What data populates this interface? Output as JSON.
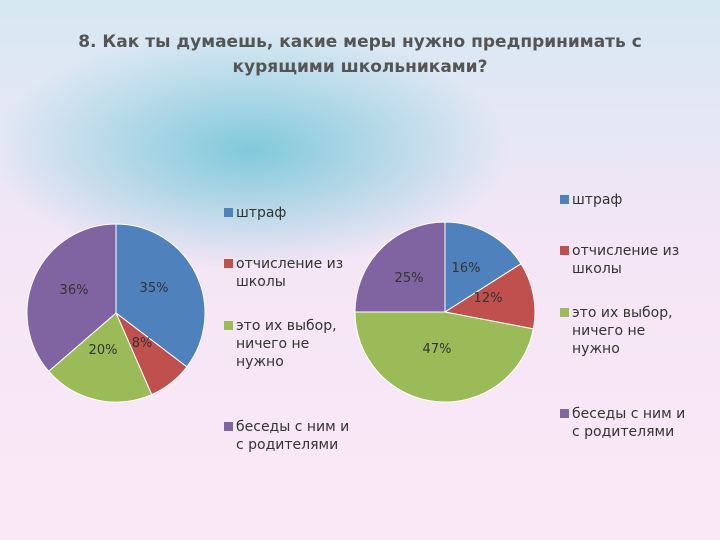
{
  "title": "8. Как ты думаешь, какие меры нужно предпринимать с курящими школьниками?",
  "chart_data": [
    {
      "type": "pie",
      "categories": [
        "штраф",
        "отчисление из школы",
        "это их выбор, ничего не нужно",
        "беседы с ним и с родителями"
      ],
      "values": [
        35,
        8,
        20,
        36
      ],
      "data_labels": [
        "35%",
        "8%",
        "20%",
        "36%"
      ],
      "colors": [
        "#4F81BD",
        "#C0504D",
        "#9BBB59",
        "#8064A2"
      ],
      "legend": [
        "штраф",
        "отчисление из школы",
        "это их выбор, ничего не нужно",
        "беседы с ним и с родителями"
      ],
      "legend_placement": "right"
    },
    {
      "type": "pie",
      "categories": [
        "штраф",
        "отчисление из школы",
        "это их выбор, ничего не нужно",
        "беседы с ним и с родителями"
      ],
      "values": [
        16,
        12,
        47,
        25
      ],
      "data_labels": [
        "16%",
        "12%",
        "47%",
        "25%"
      ],
      "colors": [
        "#4F81BD",
        "#C0504D",
        "#9BBB59",
        "#8064A2"
      ],
      "legend": [
        "штраф",
        "отчисление из школы",
        "это их выбор, ничего не нужно",
        "беседы с ним и с родителями"
      ],
      "legend_placement": "right"
    }
  ]
}
